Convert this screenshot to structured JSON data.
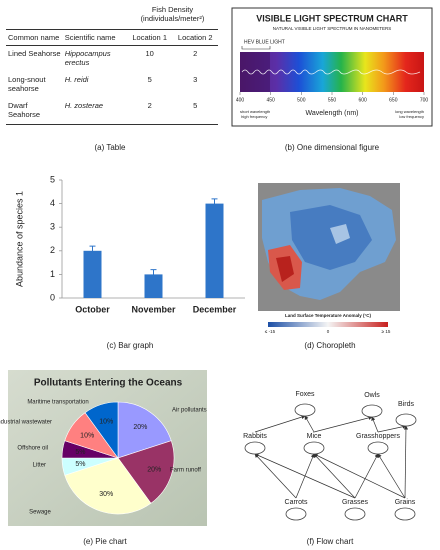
{
  "table": {
    "caption": "(a) Table",
    "header_group": "Fish Density (individuals/meter²)",
    "columns": [
      "Common name",
      "Scientific name",
      "Location 1",
      "Location 2"
    ],
    "rows": [
      [
        "Lined Seahorse",
        "Hippocampus erectus",
        10,
        2
      ],
      [
        "Long-snout seahorse",
        "H. reidi",
        5,
        3
      ],
      [
        "Dwarf Seahorse",
        "H. zosterae",
        2,
        5
      ]
    ]
  },
  "spectrum": {
    "caption": "(b) One dimensional figure",
    "title": "VISIBLE LIGHT SPECTRUM CHART",
    "subtitle": "NATURAL VISIBLE LIGHT SPECTRUM IN NANOMETERS",
    "band_label": "HEV BLUE LIGHT",
    "xlim": [
      400,
      700
    ],
    "xticks": [
      400,
      450,
      500,
      550,
      600,
      650,
      700
    ],
    "xlabel": "Wavelength (nm)",
    "left_note": "short wavelength high frequency",
    "right_note": "long wavelength low frequency"
  },
  "chart_data": [
    {
      "type": "bar",
      "caption": "(c) Bar graph",
      "ylabel": "Abundance of species 1",
      "categories": [
        "October",
        "November",
        "December"
      ],
      "values": [
        2,
        1,
        4
      ],
      "errors": [
        0.2,
        0.2,
        0.2
      ],
      "color": "#2e75c9",
      "ylim": [
        0,
        5
      ],
      "yticks": [
        0,
        1,
        2,
        3,
        4,
        5
      ],
      "grid": false
    },
    {
      "type": "pie",
      "caption": "(e) Pie chart",
      "title": "Pollutants Entering the Oceans",
      "categories": [
        "Air pollutants",
        "Farm runoff",
        "Sewage",
        "Litter",
        "Offshore oil",
        "Industrial wastewater",
        "Maritime transportation"
      ],
      "values": [
        20,
        20,
        30,
        5,
        5,
        10,
        10
      ],
      "value_labels": [
        "20%",
        "20%",
        "30%",
        "5%",
        "5%",
        "10%",
        "10%"
      ],
      "colors": [
        "#9999ff",
        "#993366",
        "#ffffcc",
        "#ccffff",
        "#660066",
        "#ff8080",
        "#0066cc"
      ]
    }
  ],
  "choropleth": {
    "caption": "(d) Choropleth",
    "legend_title": "Land Surface Temperature Anomaly (°C)",
    "legend_min": "≤ -15",
    "legend_mid": "0",
    "legend_max": "≥ 15"
  },
  "flow_chart": {
    "caption": "(f) Flow chart",
    "nodes": [
      "Foxes",
      "Owls",
      "Birds",
      "Rabbits",
      "Mice",
      "Grasshoppers",
      "Carrots",
      "Grasses",
      "Grains"
    ]
  }
}
